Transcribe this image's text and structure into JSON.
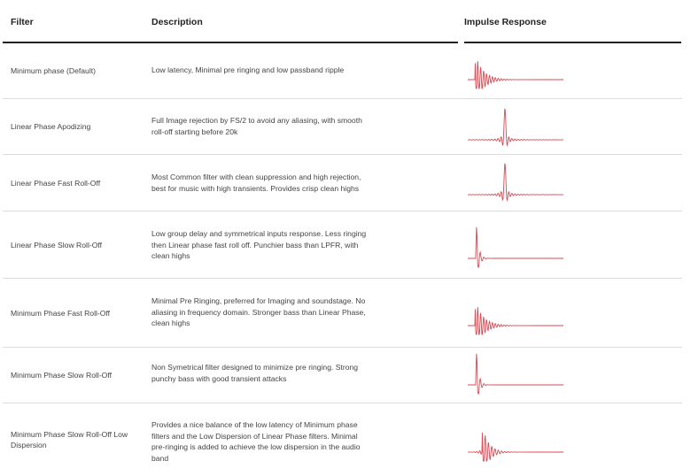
{
  "headers": {
    "filter": "Filter",
    "description": "Description",
    "impulse": "Impulse Response"
  },
  "rows": [
    {
      "filter": "Minimum phase (Default)",
      "description": "Low latency, Minimal pre ringing and low passband ripple",
      "impulse_type": "minimum"
    },
    {
      "filter": "Linear Phase Apodizing",
      "description": "Full Image rejection by FS/2 to avoid any aliasing, with smooth roll-off starting before 20k",
      "impulse_type": "linear"
    },
    {
      "filter": "Linear Phase Fast Roll-Off",
      "description": "Most Common filter with clean suppression and high rejection, best for music with high transients. Provides crisp clean highs",
      "impulse_type": "linear"
    },
    {
      "filter": "Linear Phase Slow Roll-Off",
      "description": "Low group delay and symmetrical inputs response. Less ringing then Linear phase fast roll off. Punchier bass than LPFR, with clean highs",
      "impulse_type": "short"
    },
    {
      "filter": "Minimum Phase Fast Roll-Off",
      "description": "Minimal Pre Ringing, preferred for Imaging and soundstage. No aliasing in frequency domain. Stronger bass than Linear Phase, clean highs",
      "impulse_type": "minimum"
    },
    {
      "filter": "Minimum Phase Slow Roll-Off",
      "description": "Non Symetrical filter designed to minimize pre ringing. Strong punchy bass with good transient attacks",
      "impulse_type": "short"
    },
    {
      "filter": "Minimum Phase Slow Roll-Off Low Dispersion",
      "description": "Provides a nice balance of the low latency of Minimum phase filters and the Low Dispersion of Linear Phase filters. Minimal pre-ringing is added to achieve the low dispersion in the audio band",
      "impulse_type": "hybrid"
    }
  ],
  "colors": {
    "impulse_line": "#d94a55",
    "header_rule": "#222222",
    "row_separator": "#dddddd"
  }
}
